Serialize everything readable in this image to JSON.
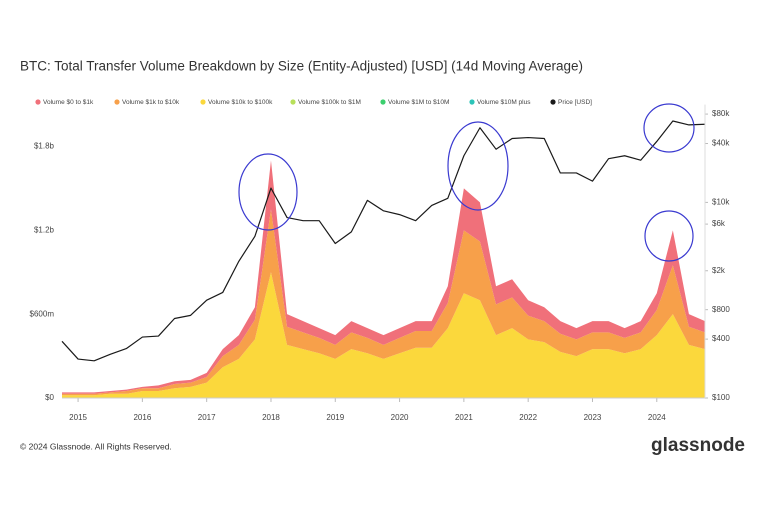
{
  "chart_data": {
    "type": "area",
    "stacked": true,
    "title": "BTC: Total Transfer Volume Breakdown by Size (Entity-Adjusted) [USD] (14d Moving Average)",
    "footer": "© 2024 Glassnode. All Rights Reserved.",
    "brand": "glassnode",
    "legend": "top",
    "grid": false,
    "x": [
      2014.75,
      2015,
      2015.25,
      2015.5,
      2015.75,
      2016,
      2016.25,
      2016.5,
      2016.75,
      2017,
      2017.25,
      2017.5,
      2017.75,
      2018,
      2018.25,
      2018.5,
      2018.75,
      2019,
      2019.25,
      2019.5,
      2019.75,
      2020,
      2020.25,
      2020.5,
      2020.75,
      2021,
      2021.25,
      2021.5,
      2021.75,
      2022,
      2022.25,
      2022.5,
      2022.75,
      2023,
      2023.25,
      2023.5,
      2023.75,
      2024,
      2024.25,
      2024.5,
      2024.75
    ],
    "xlim": [
      2014.75,
      2024.75
    ],
    "xticks": [
      2015,
      2016,
      2017,
      2018,
      2019,
      2020,
      2021,
      2022,
      2023,
      2024
    ],
    "ylim": [
      0,
      2100000000
    ],
    "yticks": [
      {
        "value": 0,
        "label": "$0"
      },
      {
        "value": 600000000,
        "label": "$600m"
      },
      {
        "value": 1200000000,
        "label": "$1.2b"
      },
      {
        "value": 1800000000,
        "label": "$1.8b"
      }
    ],
    "y2lim": [
      100,
      100000
    ],
    "y2log": true,
    "y2ticks": [
      {
        "value": 100,
        "label": "$100"
      },
      {
        "value": 400,
        "label": "$400"
      },
      {
        "value": 800,
        "label": "$800"
      },
      {
        "value": 2000,
        "label": "$2k"
      },
      {
        "value": 6000,
        "label": "$6k"
      },
      {
        "value": 10000,
        "label": "$10k"
      },
      {
        "value": 40000,
        "label": "$40k"
      },
      {
        "value": 80000,
        "label": "$80k"
      }
    ],
    "series": [
      {
        "name": "Volume $0 to $1k",
        "color": "#f0707a",
        "values": [
          10000000.0,
          10000000.0,
          10000000.0,
          10000000.0,
          10000000.0,
          10000000.0,
          20000000.0,
          20000000.0,
          20000000.0,
          30000000.0,
          50000000.0,
          70000000.0,
          90000000.0,
          350000000.0,
          90000000.0,
          80000000.0,
          70000000.0,
          70000000.0,
          80000000.0,
          70000000.0,
          70000000.0,
          70000000.0,
          70000000.0,
          70000000.0,
          120000000.0,
          300000000.0,
          280000000.0,
          130000000.0,
          130000000.0,
          110000000.0,
          100000000.0,
          90000000.0,
          80000000.0,
          80000000.0,
          80000000.0,
          70000000.0,
          80000000.0,
          120000000.0,
          250000000.0,
          90000000.0,
          80000000.0
        ]
      },
      {
        "name": "Volume $1k to $10k",
        "color": "#f7a04a",
        "values": [
          10000000.0,
          10000000.0,
          10000000.0,
          10000000.0,
          20000000.0,
          20000000.0,
          20000000.0,
          30000000.0,
          30000000.0,
          40000000.0,
          80000000.0,
          100000000.0,
          140000000.0,
          450000000.0,
          130000000.0,
          120000000.0,
          110000000.0,
          100000000.0,
          120000000.0,
          110000000.0,
          100000000.0,
          110000000.0,
          120000000.0,
          120000000.0,
          180000000.0,
          450000000.0,
          420000000.0,
          220000000.0,
          220000000.0,
          170000000.0,
          150000000.0,
          130000000.0,
          120000000.0,
          120000000.0,
          120000000.0,
          110000000.0,
          120000000.0,
          180000000.0,
          350000000.0,
          130000000.0,
          120000000.0
        ]
      },
      {
        "name": "Volume $10k to $100k",
        "color": "#fbd83c",
        "values": [
          20000000.0,
          20000000.0,
          20000000.0,
          30000000.0,
          30000000.0,
          50000000.0,
          50000000.0,
          70000000.0,
          80000000.0,
          110000000.0,
          220000000.0,
          280000000.0,
          420000000.0,
          900000000.0,
          380000000.0,
          350000000.0,
          320000000.0,
          280000000.0,
          350000000.0,
          320000000.0,
          280000000.0,
          320000000.0,
          360000000.0,
          360000000.0,
          500000000.0,
          750000000.0,
          700000000.0,
          450000000.0,
          500000000.0,
          420000000.0,
          400000000.0,
          330000000.0,
          300000000.0,
          350000000.0,
          350000000.0,
          320000000.0,
          350000000.0,
          450000000.0,
          600000000.0,
          380000000.0,
          350000000.0
        ]
      },
      {
        "name": "Volume $100k to $1M",
        "color": "#b8e05a",
        "values": [
          0,
          0,
          0,
          0,
          0,
          0,
          0,
          0,
          0,
          0,
          0,
          0,
          0,
          0,
          0,
          0,
          0,
          0,
          0,
          0,
          0,
          0,
          0,
          0,
          0,
          0,
          0,
          0,
          0,
          0,
          0,
          0,
          0,
          0,
          0,
          0,
          0,
          0,
          0,
          0,
          0
        ]
      },
      {
        "name": "Volume $1M to $10M",
        "color": "#3ccf6e",
        "values": [
          0,
          0,
          0,
          0,
          0,
          0,
          0,
          0,
          0,
          0,
          0,
          0,
          0,
          0,
          0,
          0,
          0,
          0,
          0,
          0,
          0,
          0,
          0,
          0,
          0,
          0,
          0,
          0,
          0,
          0,
          0,
          0,
          0,
          0,
          0,
          0,
          0,
          0,
          0,
          0,
          0
        ]
      },
      {
        "name": "Volume $10M plus",
        "color": "#2cc4b8",
        "values": [
          0,
          0,
          0,
          0,
          0,
          0,
          0,
          0,
          0,
          0,
          0,
          0,
          0,
          0,
          0,
          0,
          0,
          0,
          0,
          0,
          0,
          0,
          0,
          0,
          0,
          0,
          0,
          0,
          0,
          0,
          0,
          0,
          0,
          0,
          0,
          0,
          0,
          0,
          0,
          0,
          0
        ]
      },
      {
        "name": "Price [USD]",
        "color": "#1a1a1a",
        "type": "line",
        "axis": "y2",
        "values": [
          380,
          250,
          240,
          280,
          320,
          420,
          430,
          650,
          700,
          1000,
          1200,
          2500,
          4500,
          14000,
          7000,
          6500,
          6500,
          3800,
          5000,
          10500,
          8200,
          7500,
          6500,
          9300,
          11000,
          30000,
          58000,
          35000,
          45000,
          46000,
          45000,
          20000,
          20000,
          16500,
          28000,
          30000,
          27000,
          42000,
          68000,
          62000,
          63000
        ]
      }
    ]
  }
}
